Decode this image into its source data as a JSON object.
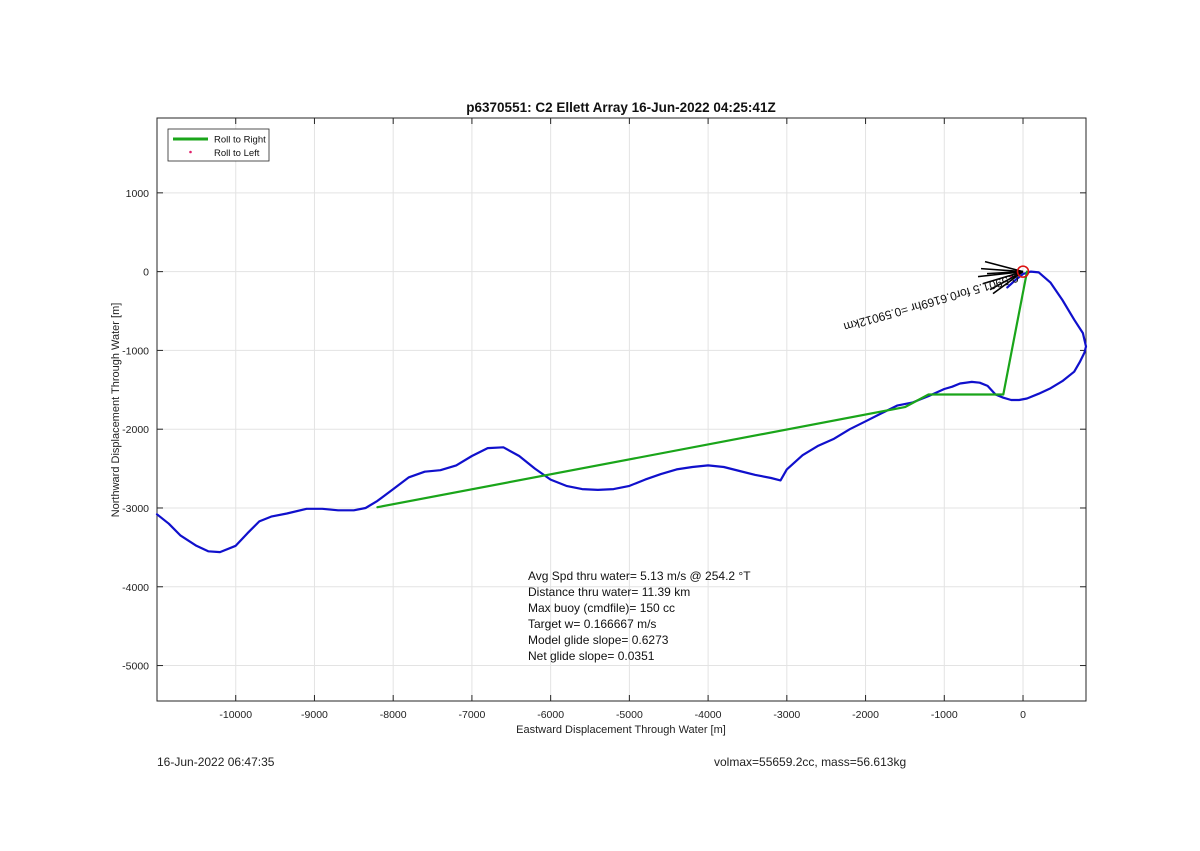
{
  "chart_data": {
    "type": "line",
    "title": "p6370551: C2 Ellett Array 16-Jun-2022 04:25:41Z",
    "xlabel": "Eastward Displacement Through Water [m]",
    "ylabel": "Northward Displacement Through Water [m]",
    "xlim": [
      -11000,
      800
    ],
    "ylim": [
      -5450,
      1950
    ],
    "xticks": [
      -10000,
      -9000,
      -8000,
      -7000,
      -6000,
      -5000,
      -4000,
      -3000,
      -2000,
      -1000,
      0
    ],
    "yticks": [
      -5000,
      -4000,
      -3000,
      -2000,
      -1000,
      0,
      1000
    ],
    "grid": true,
    "legend_position": "top-left",
    "series": [
      {
        "name": "Roll to Right",
        "color": "#1aa51a",
        "x": [
          -8200,
          -1500,
          -1200,
          -250,
          50
        ],
        "y": [
          -2990,
          -1720,
          -1560,
          -1560,
          0
        ]
      },
      {
        "name": "Roll to Left",
        "color": "#e0206a",
        "x": [
          -60,
          -100,
          -150
        ],
        "y": [
          -20,
          -40,
          -60
        ]
      },
      {
        "name": "",
        "color": "#1010cc",
        "x": [
          -11000,
          -10850,
          -10700,
          -10500,
          -10350,
          -10200,
          -10000,
          -9850,
          -9700,
          -9550,
          -9350,
          -9100,
          -8900,
          -8700,
          -8500,
          -8350,
          -8200,
          -8000,
          -7800,
          -7600,
          -7400,
          -7200,
          -7000,
          -6800,
          -6600,
          -6400,
          -6200,
          -6000,
          -5800,
          -5600,
          -5400,
          -5200,
          -5000,
          -4800,
          -4600,
          -4400,
          -4200,
          -4000,
          -3800,
          -3600,
          -3400,
          -3200,
          -3080,
          -3000,
          -2800,
          -2600,
          -2400,
          -2200,
          -2000,
          -1800,
          -1600,
          -1400,
          -1200,
          -1000,
          -900,
          -800,
          -650,
          -550,
          -450,
          -350,
          -250,
          -150,
          -50,
          50,
          200,
          350,
          500,
          650,
          720,
          780,
          800,
          760,
          650,
          500,
          350,
          200,
          100,
          0,
          -100,
          -200
        ],
        "y": [
          -3080,
          -3200,
          -3350,
          -3480,
          -3550,
          -3560,
          -3480,
          -3320,
          -3170,
          -3110,
          -3070,
          -3010,
          -3010,
          -3030,
          -3030,
          -3000,
          -2910,
          -2760,
          -2610,
          -2540,
          -2520,
          -2460,
          -2340,
          -2240,
          -2230,
          -2340,
          -2500,
          -2640,
          -2720,
          -2760,
          -2770,
          -2760,
          -2720,
          -2640,
          -2570,
          -2510,
          -2480,
          -2460,
          -2480,
          -2530,
          -2580,
          -2620,
          -2650,
          -2510,
          -2330,
          -2210,
          -2120,
          -2000,
          -1900,
          -1800,
          -1700,
          -1660,
          -1580,
          -1490,
          -1460,
          -1420,
          -1400,
          -1410,
          -1450,
          -1560,
          -1600,
          -1630,
          -1630,
          -1610,
          -1550,
          -1480,
          -1390,
          -1270,
          -1150,
          -1030,
          -950,
          -780,
          -610,
          -360,
          -140,
          -10,
          0,
          -30,
          -110,
          -200
        ]
      }
    ],
    "annotations": {
      "arrow_label": "0.5901.5 for0.6169hr =0.59012km",
      "stats_lines": [
        "Avg Spd thru water=  5.13 m/s @ 254.2 °T",
        "Distance thru water= 11.39 km",
        "Max buoy (cmdfile)= 150 cc",
        "Target w= 0.166667 m/s",
        "Model glide slope= 0.6273",
        "Net glide slope= 0.0351"
      ]
    }
  },
  "footer": {
    "date": "16-Jun-2022 06:47:35",
    "volmax_mass": "volmax=55659.2cc, mass=56.613kg"
  }
}
